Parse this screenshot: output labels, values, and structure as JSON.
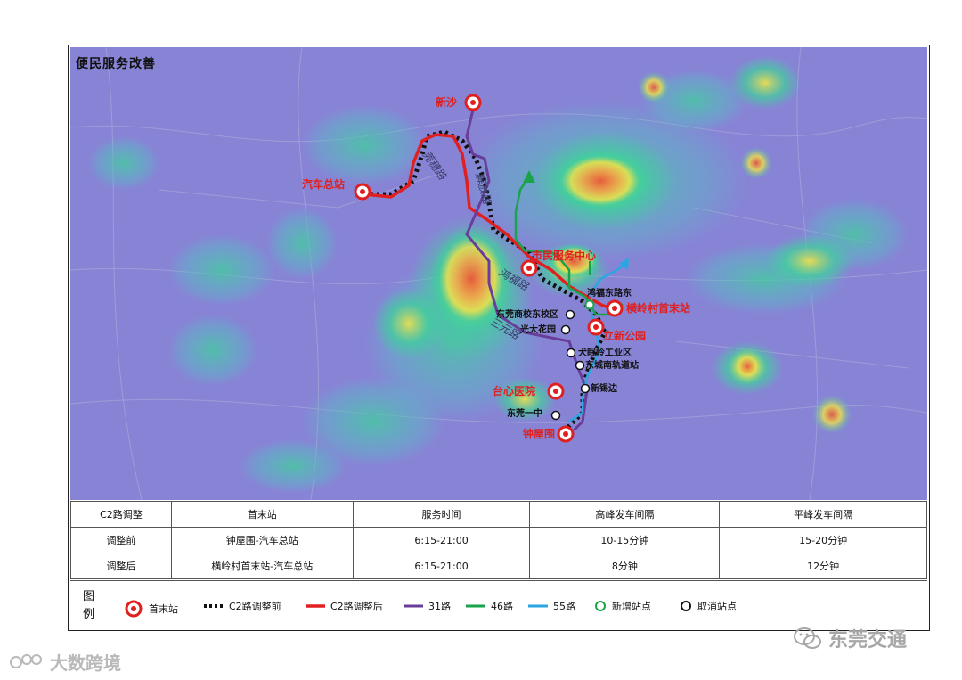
{
  "map": {
    "title": "便民服务改善",
    "stations": {
      "xinsha": "新沙",
      "qiche": "汽车总站",
      "shimin": "市民服务中心",
      "hengling": "横岭村首末站",
      "lixin": "立新公园",
      "taixin": "台心医院",
      "zhongwu": "钟屋围"
    },
    "stops": {
      "hongfu": "鸿福东路东",
      "dongguanshang": "东莞商校东校区",
      "guangda": "光大花园",
      "quanmian": "犬眠岭工业区",
      "dongchengnan": "东城南轨道站",
      "xinxibian": "新锡边",
      "dongguanyizhong": "东莞一中"
    },
    "roads": {
      "guancheng": "莞穗路",
      "jiefang": "解放路",
      "hongfu": "鸿福路",
      "sanyuan": "三元路"
    }
  },
  "table": {
    "headers": [
      "C2路调整",
      "首末站",
      "服务时间",
      "高峰发车间隔",
      "平峰发车间隔"
    ],
    "rows": [
      [
        "调整前",
        "钟屋围-汽车总站",
        "6:15-21:00",
        "10-15分钟",
        "15-20分钟"
      ],
      [
        "调整后",
        "横岭村首末站-汽车总站",
        "6:15-21:00",
        "8分钟",
        "12分钟"
      ]
    ]
  },
  "legend": {
    "label": "图例",
    "items": [
      {
        "label": "首末站",
        "icon": "terminal-station-icon"
      },
      {
        "label": "C2路调整前",
        "color": "#111111"
      },
      {
        "label": "C2路调整后",
        "color": "#e02020"
      },
      {
        "label": "31路",
        "color": "#6a3d9a"
      },
      {
        "label": "46路",
        "color": "#1aa34a"
      },
      {
        "label": "55路",
        "color": "#2aa7e0"
      },
      {
        "label": "新增站点",
        "icon": "new-stop-icon"
      },
      {
        "label": "取消站点",
        "icon": "cancelled-stop-icon"
      }
    ]
  },
  "watermarks": {
    "right": "东莞交通",
    "left": "大数跨境"
  },
  "colors": {
    "heat_low": "#7b78d8",
    "heat_mid": "#3fd19a",
    "heat_high": "#f0e24a",
    "heat_peak": "#e6553a"
  }
}
